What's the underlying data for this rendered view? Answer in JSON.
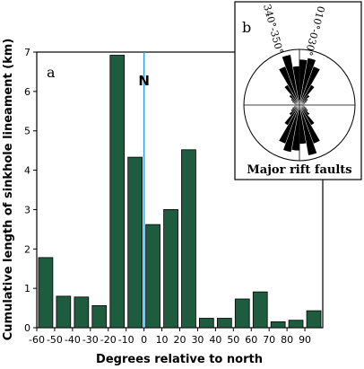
{
  "chart_data": [
    {
      "type": "bar",
      "panel_label": "a",
      "xlabel": "Degrees relative to north",
      "ylabel": "Cumulative length of sinkhole lineament (km)",
      "xlim": [
        -60,
        100
      ],
      "ylim": [
        0,
        7
      ],
      "bin_width": 10,
      "x_ticks": [
        -60,
        -50,
        -40,
        -30,
        -20,
        -10,
        0,
        10,
        20,
        30,
        40,
        50,
        60,
        70,
        80,
        90
      ],
      "y_ticks": [
        0,
        1,
        2,
        3,
        4,
        5,
        6,
        7
      ],
      "bar_color": "#1d5c3e",
      "reference_line": {
        "x": 0,
        "label": "N",
        "color": "#29a3d8"
      },
      "bins": [
        {
          "from": -60,
          "to": -50,
          "value": 1.78
        },
        {
          "from": -50,
          "to": -40,
          "value": 0.8
        },
        {
          "from": -40,
          "to": -30,
          "value": 0.78
        },
        {
          "from": -30,
          "to": -20,
          "value": 0.56
        },
        {
          "from": -20,
          "to": -10,
          "value": 6.92
        },
        {
          "from": -10,
          "to": 0,
          "value": 4.33
        },
        {
          "from": 0,
          "to": 10,
          "value": 2.62
        },
        {
          "from": 10,
          "to": 20,
          "value": 3.0
        },
        {
          "from": 20,
          "to": 30,
          "value": 4.52
        },
        {
          "from": 30,
          "to": 40,
          "value": 0.24
        },
        {
          "from": 40,
          "to": 50,
          "value": 0.24
        },
        {
          "from": 50,
          "to": 60,
          "value": 0.73
        },
        {
          "from": 60,
          "to": 70,
          "value": 0.91
        },
        {
          "from": 70,
          "to": 80,
          "value": 0.15
        },
        {
          "from": 80,
          "to": 90,
          "value": 0.19
        },
        {
          "from": 90,
          "to": 100,
          "value": 0.43
        }
      ]
    },
    {
      "type": "rose",
      "panel_label": "b",
      "title": "Major rift faults",
      "annotations": [
        "340°-350°",
        "010°-030°"
      ],
      "petal_color": "#000000",
      "petals": [
        {
          "from": 0,
          "to": 10,
          "value": 0.82
        },
        {
          "from": 10,
          "to": 20,
          "value": 0.86
        },
        {
          "from": 20,
          "to": 30,
          "value": 0.74
        },
        {
          "from": 30,
          "to": 40,
          "value": 0.42
        },
        {
          "from": 40,
          "to": 50,
          "value": 0.24
        },
        {
          "from": 50,
          "to": 60,
          "value": 0.18
        },
        {
          "from": 60,
          "to": 70,
          "value": 0.14
        },
        {
          "from": 70,
          "to": 80,
          "value": 0.1
        },
        {
          "from": 80,
          "to": 90,
          "value": 0.08
        },
        {
          "from": 90,
          "to": 100,
          "value": 0.08
        },
        {
          "from": 100,
          "to": 110,
          "value": 0.1
        },
        {
          "from": 110,
          "to": 120,
          "value": 0.14
        },
        {
          "from": 120,
          "to": 130,
          "value": 0.18
        },
        {
          "from": 130,
          "to": 140,
          "value": 0.24
        },
        {
          "from": 140,
          "to": 150,
          "value": 0.42
        },
        {
          "from": 150,
          "to": 160,
          "value": 0.74
        },
        {
          "from": 160,
          "to": 170,
          "value": 0.92
        },
        {
          "from": 170,
          "to": 180,
          "value": 0.7
        },
        {
          "from": 180,
          "to": 190,
          "value": 0.82
        },
        {
          "from": 190,
          "to": 200,
          "value": 0.86
        },
        {
          "from": 200,
          "to": 210,
          "value": 0.74
        },
        {
          "from": 210,
          "to": 220,
          "value": 0.42
        },
        {
          "from": 220,
          "to": 230,
          "value": 0.24
        },
        {
          "from": 230,
          "to": 240,
          "value": 0.18
        },
        {
          "from": 240,
          "to": 250,
          "value": 0.14
        },
        {
          "from": 250,
          "to": 260,
          "value": 0.1
        },
        {
          "from": 260,
          "to": 270,
          "value": 0.08
        },
        {
          "from": 270,
          "to": 280,
          "value": 0.08
        },
        {
          "from": 280,
          "to": 290,
          "value": 0.1
        },
        {
          "from": 290,
          "to": 300,
          "value": 0.14
        },
        {
          "from": 300,
          "to": 310,
          "value": 0.18
        },
        {
          "from": 310,
          "to": 320,
          "value": 0.24
        },
        {
          "from": 320,
          "to": 330,
          "value": 0.42
        },
        {
          "from": 330,
          "to": 340,
          "value": 0.74
        },
        {
          "from": 340,
          "to": 350,
          "value": 0.92
        },
        {
          "from": 350,
          "to": 360,
          "value": 0.7
        }
      ]
    }
  ]
}
